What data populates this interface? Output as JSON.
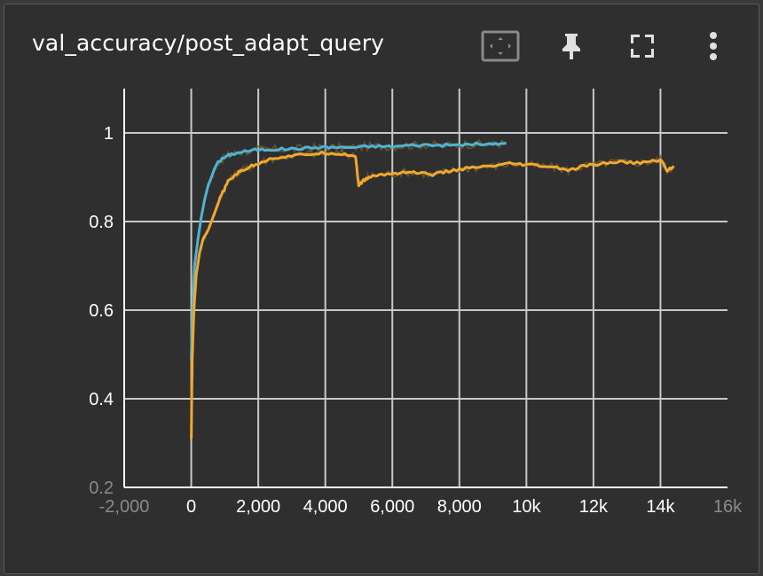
{
  "card": {
    "title": "val_accuracy/post_adapt_query"
  },
  "toolbar": {
    "icons": [
      "fit-domain-icon",
      "pin-icon",
      "fullscreen-icon",
      "more-vert-icon"
    ]
  },
  "colors": {
    "background": "#2f2f2f",
    "grid": "#c8c8c8",
    "series_blue": "#4fb3d6",
    "series_orange": "#f0a830",
    "raw_shadow": "#6a5a2e"
  },
  "chart_data": {
    "type": "line",
    "title": "val_accuracy/post_adapt_query",
    "xlabel": "",
    "ylabel": "",
    "xlim": [
      -2000,
      16000
    ],
    "ylim": [
      0.2,
      1.1
    ],
    "grid": true,
    "x_ticks": [
      "-2,000",
      "0",
      "2,000",
      "4,000",
      "6,000",
      "8,000",
      "10k",
      "12k",
      "14k",
      "16k"
    ],
    "y_ticks": [
      "0.2",
      "0.4",
      "0.6",
      "0.8",
      "1"
    ],
    "series": [
      {
        "color": "#4fb3d6",
        "x": [
          0,
          50,
          100,
          200,
          300,
          400,
          500,
          600,
          700,
          800,
          1000,
          1200,
          1500,
          2000,
          2500,
          3000,
          3500,
          4000,
          4500,
          5000,
          5500,
          6000,
          6500,
          7000,
          7500,
          8000,
          8500,
          9000,
          9400
        ],
        "y": [
          0.49,
          0.62,
          0.7,
          0.76,
          0.81,
          0.85,
          0.88,
          0.9,
          0.92,
          0.935,
          0.945,
          0.952,
          0.957,
          0.962,
          0.963,
          0.964,
          0.966,
          0.968,
          0.967,
          0.968,
          0.97,
          0.969,
          0.972,
          0.973,
          0.972,
          0.973,
          0.975,
          0.974,
          0.977
        ]
      },
      {
        "color": "#f0a830",
        "x": [
          0,
          30,
          80,
          150,
          250,
          350,
          500,
          700,
          900,
          1100,
          1300,
          1500,
          1800,
          2100,
          2500,
          3000,
          3500,
          4000,
          4500,
          4900,
          5000,
          5100,
          5300,
          5600,
          6000,
          6400,
          6800,
          7200,
          7600,
          8000,
          8500,
          9000,
          9500,
          10000,
          10500,
          11000,
          11300,
          11700,
          12200,
          12700,
          13200,
          13700,
          14000,
          14200,
          14400
        ],
        "y": [
          0.31,
          0.49,
          0.6,
          0.68,
          0.73,
          0.76,
          0.78,
          0.82,
          0.86,
          0.89,
          0.905,
          0.915,
          0.925,
          0.935,
          0.944,
          0.948,
          0.952,
          0.955,
          0.953,
          0.948,
          0.88,
          0.89,
          0.9,
          0.905,
          0.908,
          0.912,
          0.91,
          0.906,
          0.912,
          0.918,
          0.922,
          0.925,
          0.93,
          0.928,
          0.925,
          0.92,
          0.915,
          0.925,
          0.93,
          0.935,
          0.932,
          0.935,
          0.94,
          0.915,
          0.925
        ]
      }
    ]
  }
}
